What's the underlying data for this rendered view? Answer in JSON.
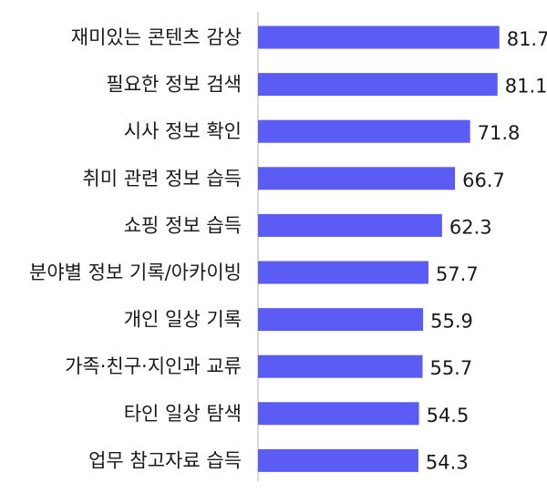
{
  "chart_data": {
    "type": "bar",
    "orientation": "horizontal",
    "categories": [
      "재미있는 콘텐츠 감상",
      "필요한 정보 검색",
      "시사 정보 확인",
      "취미 관련 정보 습득",
      "쇼핑 정보 습득",
      "분야별 정보 기록/아카이빙",
      "개인 일상 기록",
      "가족·친구·지인과 교류",
      "타인 일상 탐색",
      "업무 참고자료 습득"
    ],
    "values": [
      81.7,
      81.1,
      71.8,
      66.7,
      62.3,
      57.7,
      55.9,
      55.7,
      54.5,
      54.3
    ],
    "value_labels": [
      "81.7",
      "81.1",
      "71.8",
      "66.7",
      "62.3",
      "57.7",
      "55.9",
      "55.7",
      "54.5",
      "54.3"
    ],
    "xlim": [
      0,
      100
    ],
    "grid": false,
    "legend": "none",
    "colors": {
      "bar": "#5b5cf3",
      "axis": "#bdbdbd",
      "text": "#1a1a1a"
    }
  }
}
